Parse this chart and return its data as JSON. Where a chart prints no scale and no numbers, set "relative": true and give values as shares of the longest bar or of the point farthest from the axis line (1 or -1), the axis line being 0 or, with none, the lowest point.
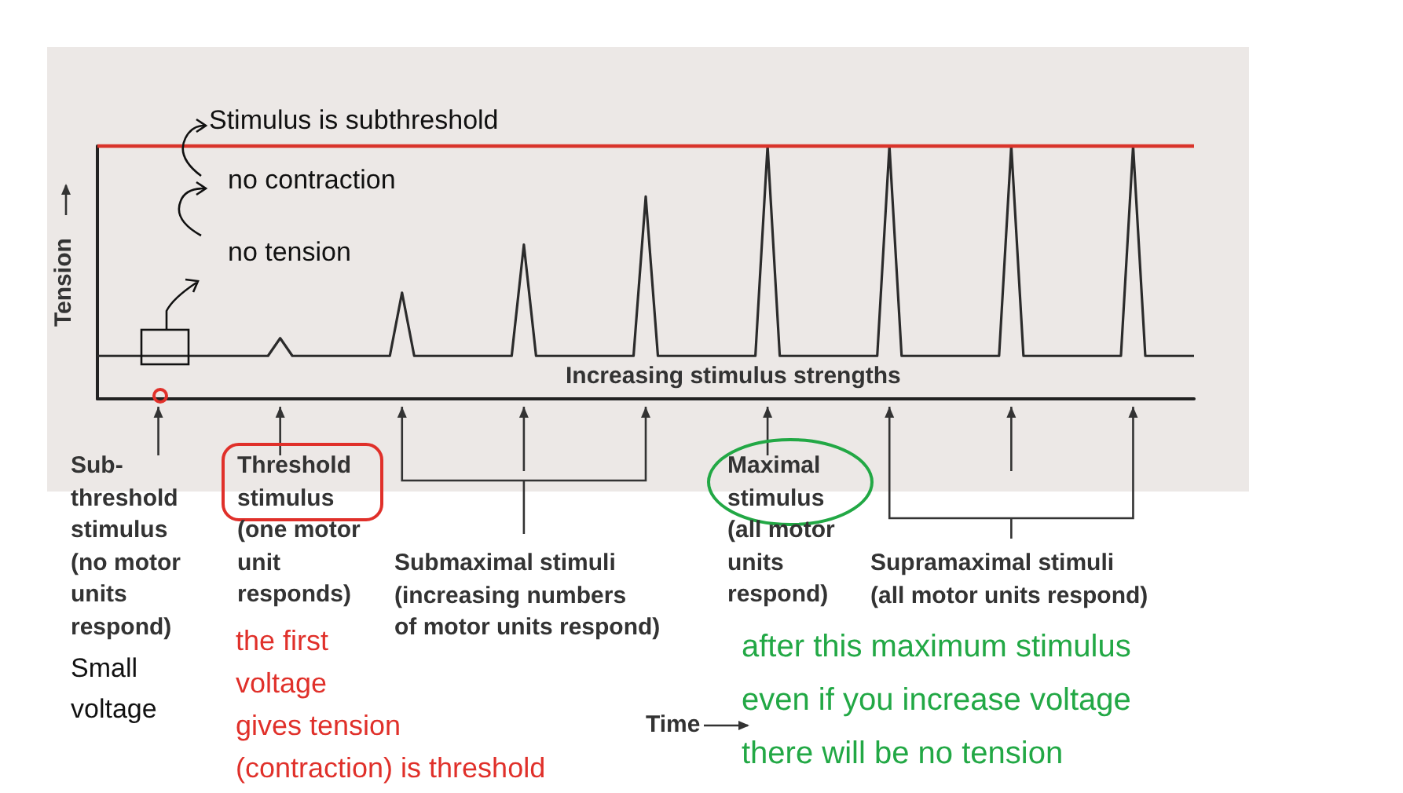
{
  "chart_data": {
    "type": "line",
    "relative": true,
    "ylabel": "Tension",
    "categories": [
      null,
      null,
      null,
      null,
      null,
      null,
      null,
      null,
      null,
      null,
      null,
      null,
      null,
      null,
      null,
      null,
      null,
      null,
      null,
      null,
      null,
      null,
      null,
      null,
      null,
      null,
      null,
      null,
      null,
      null,
      null,
      null,
      null,
      null,
      null,
      null,
      null,
      null,
      null,
      null,
      null,
      null,
      null,
      null,
      null,
      null,
      null,
      null,
      null,
      null,
      null,
      null,
      null,
      null,
      null,
      null,
      null,
      null,
      null,
      null,
      null,
      null,
      null,
      null,
      null,
      null,
      null,
      null,
      null,
      null,
      null,
      null,
      null,
      null,
      null,
      null,
      null,
      null,
      null,
      null,
      null,
      null,
      null,
      null,
      null,
      null,
      null,
      null,
      null,
      null,
      null
    ],
    "series": [
      {
        "color": "#2b2b2b",
        "values": [
          0.17,
          0.17,
          0.17,
          0.17,
          0.17,
          0.17,
          0.17,
          0.17,
          0.17,
          0.17,
          0.17,
          0.17,
          0.17,
          0.17,
          0.17,
          0.24,
          0.17,
          0.17,
          0.17,
          0.17,
          0.17,
          0.17,
          0.17,
          0.17,
          0.17,
          0.42,
          0.17,
          0.17,
          0.17,
          0.17,
          0.17,
          0.17,
          0.17,
          0.17,
          0.17,
          0.61,
          0.17,
          0.17,
          0.17,
          0.17,
          0.17,
          0.17,
          0.17,
          0.17,
          0.17,
          0.8,
          0.17,
          0.17,
          0.17,
          0.17,
          0.17,
          0.17,
          0.17,
          0.17,
          0.17,
          1,
          0.17,
          0.17,
          0.17,
          0.17,
          0.17,
          0.17,
          0.17,
          0.17,
          0.17,
          1,
          0.17,
          0.17,
          0.17,
          0.17,
          0.17,
          0.17,
          0.17,
          0.17,
          0.17,
          1,
          0.17,
          0.17,
          0.17,
          0.17,
          0.17,
          0.17,
          0.17,
          0.17,
          0.17,
          1,
          0.17,
          0.17,
          0.17,
          0.17,
          0.17
        ]
      }
    ],
    "line_style": "solid",
    "grid": false,
    "ref_lines": [
      {
        "axis": "y",
        "value": 1,
        "color": "#d9342b"
      }
    ],
    "annotations": [
      "Increasing stimulus strengths",
      "Sub-\nthreshold\nstimulus\n(no motor\nunits\nrespond)",
      "Threshold\nstimulus\n(one motor\nunit\nresponds)",
      "Submaximal stimuli\n(increasing numbers\nof motor units respond)",
      "Maximal\nstimulus\n(all motor\nunits\nrespond)",
      "Supramaximal stimuli\n(all motor units respond)",
      "Stimulus is subthreshold",
      "no contraction",
      "no tension",
      "Small\nvoltage",
      "the first\nvoltage\ngives tension\n(contraction) is threshold",
      "after this maximum stimulus\neven if you increase voltage\nthere will be no tension",
      "Time"
    ]
  }
}
